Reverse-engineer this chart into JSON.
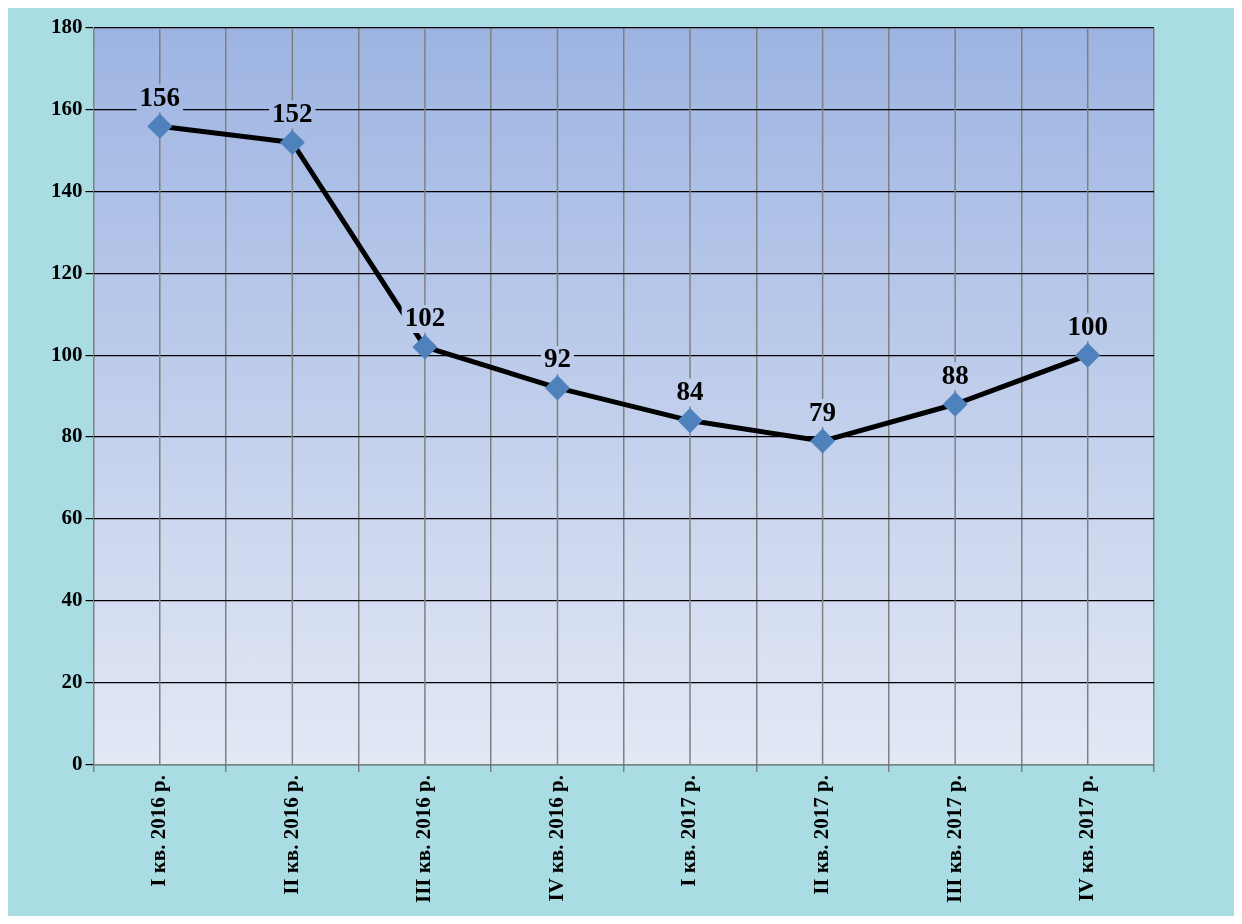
{
  "chart_data": {
    "type": "line",
    "categories": [
      "I кв. 2016 р.",
      "II кв. 2016 р.",
      "III кв. 2016 р.",
      "IV кв. 2016 р.",
      "I кв. 2017 р.",
      "II кв. 2017 р.",
      "III кв. 2017 р.",
      "IV кв. 2017 р."
    ],
    "values": [
      156,
      152,
      102,
      92,
      84,
      79,
      88,
      100
    ],
    "color": "#000000",
    "marker": "diamond",
    "line_style": "solid",
    "ylim": [
      0,
      180
    ],
    "yticks": [
      0,
      20,
      40,
      60,
      80,
      100,
      120,
      140,
      160,
      180
    ],
    "grid": true,
    "data_labels": true
  }
}
